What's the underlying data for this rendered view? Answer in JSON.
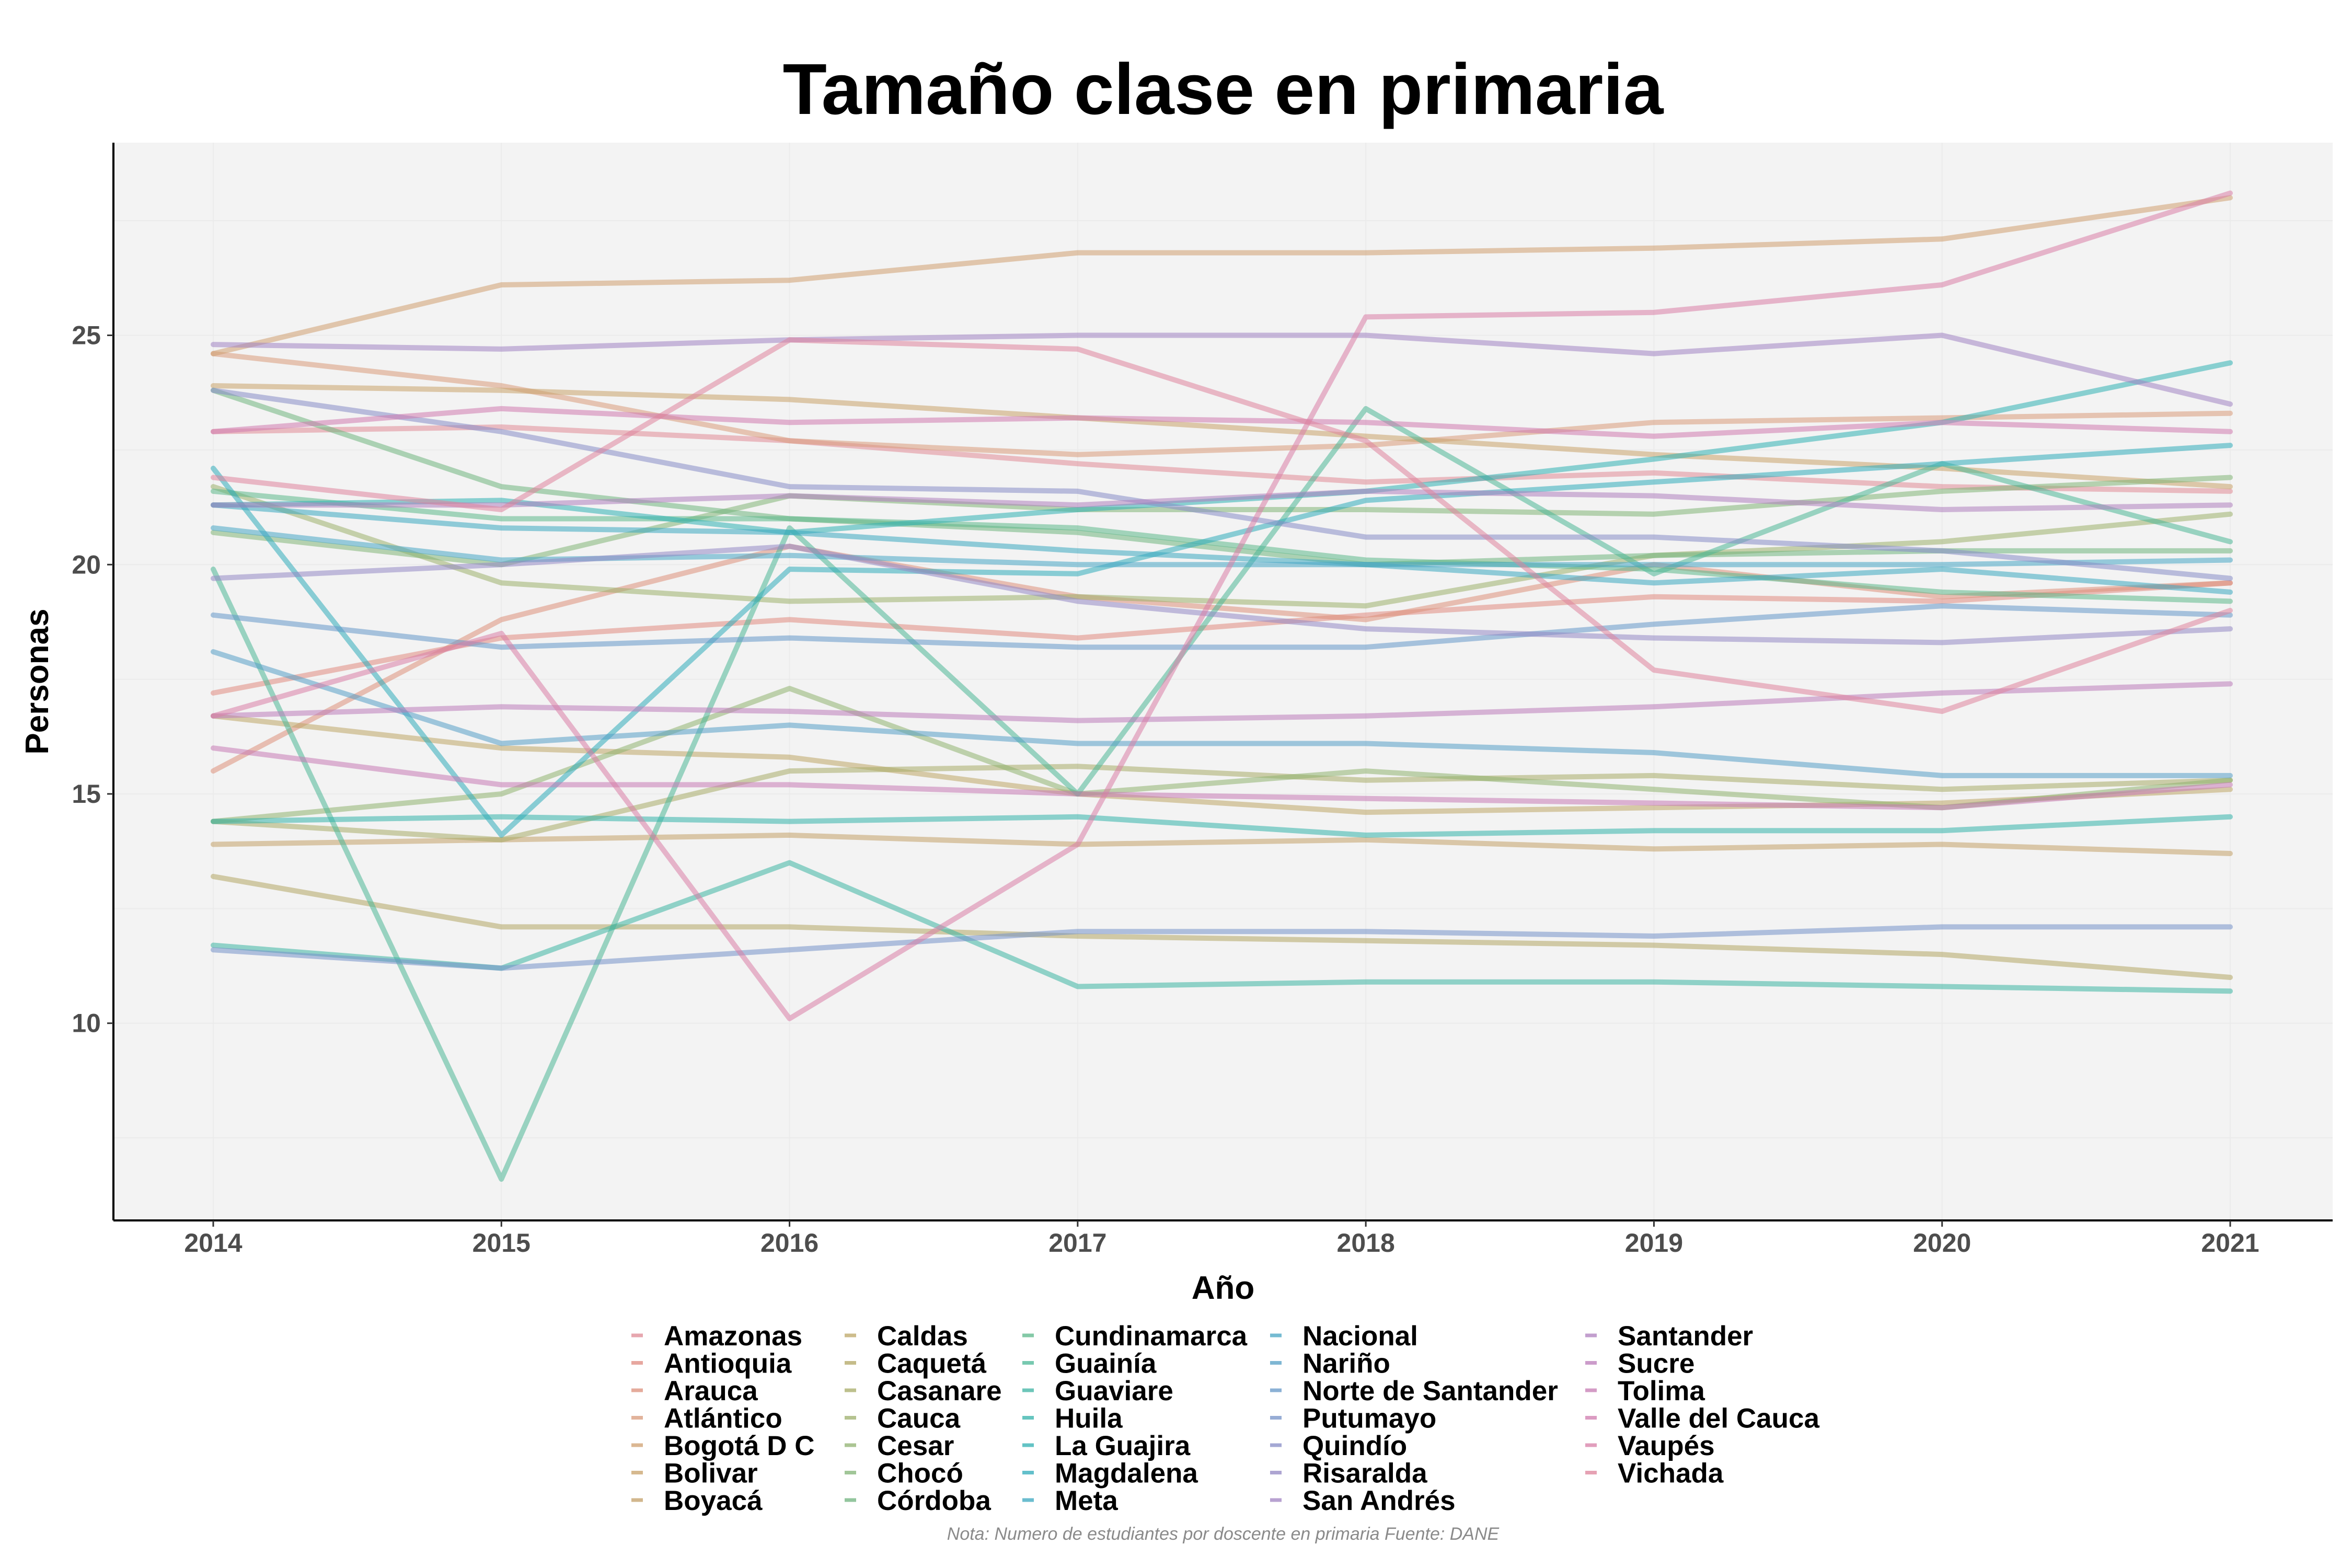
{
  "chart_data": {
    "type": "line",
    "title": "Tamaño clase en primaria",
    "xlabel": "Año",
    "ylabel": "Personas",
    "caption": "Nota: Numero de estudiantes por doscente en primaria Fuente: DANE",
    "x": [
      2014,
      2015,
      2016,
      2017,
      2018,
      2019,
      2020,
      2021
    ],
    "x_ticks": [
      "2014",
      "2015",
      "2016",
      "2017",
      "2018",
      "2019",
      "2020",
      "2021"
    ],
    "ylim": [
      5.7,
      29.2
    ],
    "y_ticks": [
      10,
      15,
      20,
      25
    ],
    "y_tick_labels": [
      "10",
      "15",
      "20",
      "25"
    ],
    "grid": true,
    "legend_position": "bottom",
    "series": [
      {
        "name": "Amazonas",
        "color": "#e08a95",
        "values": [
          22.9,
          23.0,
          22.7,
          22.2,
          21.8,
          22.0,
          21.7,
          21.6
        ]
      },
      {
        "name": "Antioquia",
        "color": "#e08a80",
        "values": [
          17.2,
          18.4,
          18.8,
          18.4,
          18.9,
          19.3,
          19.2,
          19.6
        ]
      },
      {
        "name": "Arauca",
        "color": "#dd907a",
        "values": [
          15.5,
          18.8,
          20.4,
          19.3,
          18.8,
          20.0,
          19.3,
          19.6
        ]
      },
      {
        "name": "Atlántico",
        "color": "#d99a7a",
        "values": [
          24.6,
          23.9,
          22.7,
          22.4,
          22.6,
          23.1,
          23.2,
          23.3
        ]
      },
      {
        "name": "Bogotá D C",
        "color": "#cf9f70",
        "values": [
          24.6,
          26.1,
          26.2,
          26.8,
          26.8,
          26.9,
          27.1,
          28.0
        ]
      },
      {
        "name": "Bolivar",
        "color": "#c9a26a",
        "values": [
          23.9,
          23.8,
          23.6,
          23.2,
          22.8,
          22.4,
          22.1,
          21.7
        ]
      },
      {
        "name": "Boyacá",
        "color": "#c3a068",
        "values": [
          13.9,
          14.0,
          14.1,
          13.9,
          14.0,
          13.8,
          13.9,
          13.7
        ]
      },
      {
        "name": "Caldas",
        "color": "#bda666",
        "values": [
          16.7,
          16.0,
          15.8,
          15.0,
          14.6,
          14.7,
          14.8,
          15.1
        ]
      },
      {
        "name": "Caquetá",
        "color": "#b2a664",
        "values": [
          13.2,
          12.1,
          12.1,
          11.9,
          11.8,
          11.7,
          11.5,
          11.0
        ]
      },
      {
        "name": "Casanare",
        "color": "#a8ab68",
        "values": [
          14.4,
          14.0,
          15.5,
          15.6,
          15.3,
          15.4,
          15.1,
          15.3
        ]
      },
      {
        "name": "Cauca",
        "color": "#9db06c",
        "values": [
          21.7,
          19.6,
          19.2,
          19.3,
          19.1,
          20.2,
          20.5,
          21.1
        ]
      },
      {
        "name": "Cesar",
        "color": "#90b270",
        "values": [
          14.4,
          15.0,
          17.3,
          15.0,
          15.5,
          15.1,
          14.7,
          15.3
        ]
      },
      {
        "name": "Chocó",
        "color": "#82b476",
        "values": [
          20.7,
          20.0,
          21.5,
          21.2,
          21.2,
          21.1,
          21.6,
          21.9
        ]
      },
      {
        "name": "Córdoba",
        "color": "#6fb47e",
        "values": [
          23.8,
          21.7,
          21.0,
          20.7,
          20.0,
          20.2,
          20.3,
          20.3
        ]
      },
      {
        "name": "Cundinamarca",
        "color": "#5cb88a",
        "values": [
          21.6,
          21.0,
          21.0,
          20.8,
          20.1,
          19.9,
          19.4,
          19.2
        ]
      },
      {
        "name": "Guainía",
        "color": "#4cb796",
        "values": [
          19.9,
          6.6,
          20.8,
          15.0,
          23.4,
          19.8,
          22.2,
          20.5
        ]
      },
      {
        "name": "Guaviare",
        "color": "#3db4a2",
        "values": [
          11.7,
          11.2,
          13.5,
          10.8,
          10.9,
          10.9,
          10.8,
          10.7
        ]
      },
      {
        "name": "Huila",
        "color": "#33b2aa",
        "values": [
          14.4,
          14.5,
          14.4,
          14.5,
          14.1,
          14.2,
          14.2,
          14.5
        ]
      },
      {
        "name": "La Guajira",
        "color": "#2fb0b2",
        "values": [
          21.3,
          21.4,
          20.7,
          21.2,
          21.6,
          22.3,
          23.1,
          24.4
        ]
      },
      {
        "name": "Magdalena",
        "color": "#30acba",
        "values": [
          22.1,
          14.1,
          19.9,
          19.8,
          21.4,
          21.8,
          22.2,
          22.6
        ]
      },
      {
        "name": "Meta",
        "color": "#3aa8c0",
        "values": [
          21.3,
          20.8,
          20.7,
          20.3,
          20.0,
          19.6,
          19.9,
          19.4
        ]
      },
      {
        "name": "Nacional",
        "color": "#47a5c4",
        "values": [
          20.8,
          20.1,
          20.2,
          20.0,
          20.0,
          20.0,
          20.0,
          20.1
        ]
      },
      {
        "name": "Nariño",
        "color": "#559fc6",
        "values": [
          18.1,
          16.1,
          16.5,
          16.1,
          16.1,
          15.9,
          15.4,
          15.4
        ]
      },
      {
        "name": "Norte de Santander",
        "color": "#6598c8",
        "values": [
          18.9,
          18.2,
          18.4,
          18.2,
          18.2,
          18.7,
          19.1,
          18.9
        ]
      },
      {
        "name": "Putumayo",
        "color": "#7592c8",
        "values": [
          11.6,
          11.2,
          11.6,
          12.0,
          12.0,
          11.9,
          12.1,
          12.1
        ]
      },
      {
        "name": "Quindío",
        "color": "#868cc6",
        "values": [
          23.8,
          22.9,
          21.7,
          21.6,
          20.6,
          20.6,
          20.3,
          19.7
        ]
      },
      {
        "name": "Risaralda",
        "color": "#9488c4",
        "values": [
          19.7,
          20.0,
          20.4,
          19.2,
          18.6,
          18.4,
          18.3,
          18.6
        ]
      },
      {
        "name": "San Andrés",
        "color": "#a184c2",
        "values": [
          24.8,
          24.7,
          24.9,
          25.0,
          25.0,
          24.6,
          25.0,
          23.5
        ]
      },
      {
        "name": "Santander",
        "color": "#ae80be",
        "values": [
          21.3,
          21.3,
          21.5,
          21.3,
          21.6,
          21.5,
          21.2,
          21.3
        ]
      },
      {
        "name": "Sucre",
        "color": "#bb7cba",
        "values": [
          16.7,
          16.9,
          16.8,
          16.6,
          16.7,
          16.9,
          17.2,
          17.4
        ]
      },
      {
        "name": "Tolima",
        "color": "#c67ab4",
        "values": [
          16.0,
          15.2,
          15.2,
          15.0,
          14.9,
          14.8,
          14.7,
          15.2
        ]
      },
      {
        "name": "Valle del Cauca",
        "color": "#d07aae",
        "values": [
          22.9,
          23.4,
          23.1,
          23.2,
          23.1,
          22.8,
          23.1,
          22.9
        ]
      },
      {
        "name": "Vaupés",
        "color": "#d87ea6",
        "values": [
          16.7,
          18.5,
          10.1,
          13.9,
          25.4,
          25.5,
          26.1,
          28.1
        ]
      },
      {
        "name": "Vichada",
        "color": "#de849c",
        "values": [
          21.9,
          21.2,
          24.9,
          24.7,
          22.7,
          17.7,
          16.8,
          19.0
        ]
      }
    ]
  }
}
